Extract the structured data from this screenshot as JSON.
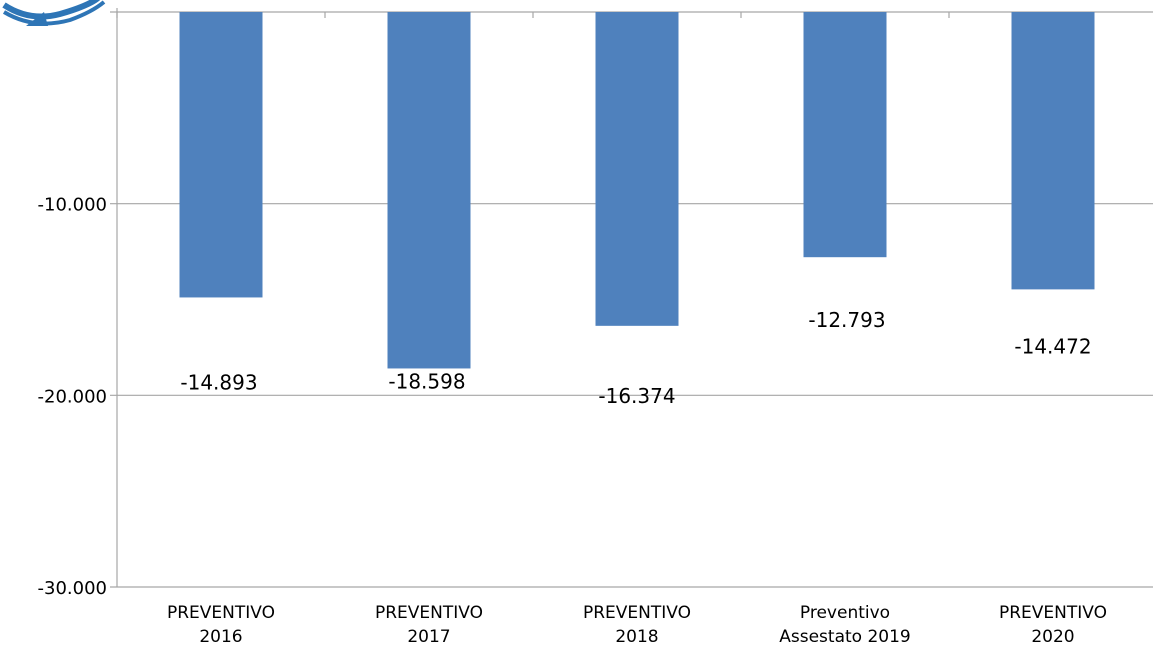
{
  "chart_data": {
    "type": "bar",
    "categories": [
      [
        "PREVENTIVO",
        "2016"
      ],
      [
        "PREVENTIVO",
        "2017"
      ],
      [
        "PREVENTIVO",
        "2018"
      ],
      [
        "Preventivo",
        "Assestato 2019"
      ],
      [
        "PREVENTIVO",
        "2020"
      ]
    ],
    "values": [
      -14893,
      -18598,
      -16374,
      -12793,
      -14472
    ],
    "data_labels": [
      "-14.893",
      "-18.598",
      "-16.374",
      "-12.793",
      "-14.472"
    ],
    "y_ticks": [
      {
        "value": -10000,
        "label": "-10.000"
      },
      {
        "value": -20000,
        "label": "-20.000"
      },
      {
        "value": -30000,
        "label": "-30.000"
      }
    ],
    "ylim": [
      -30000,
      0
    ],
    "grid": true,
    "bar_color": "#4F81BD",
    "grid_color": "#A6A6A6",
    "title": "",
    "xlabel": "",
    "ylabel": ""
  },
  "logo": {
    "icon": "refresh-arrows-icon",
    "color": "#2E75B6"
  }
}
